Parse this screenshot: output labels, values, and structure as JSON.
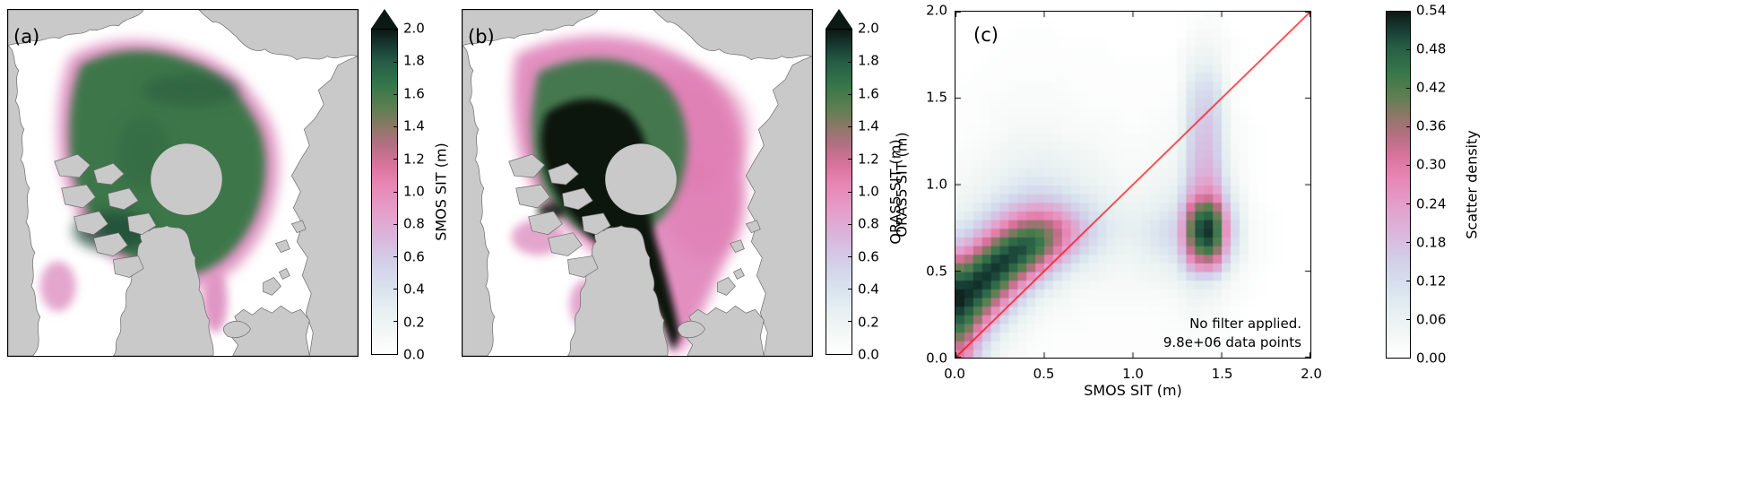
{
  "figure": {
    "background": "#ffffff",
    "land_color": "#c9c9c9",
    "pole_hole_color": "#c9c9c9",
    "frame_color": "#000000",
    "colormap_stops": [
      {
        "t": 0.0,
        "color": "#ffffff"
      },
      {
        "t": 0.06,
        "color": "#f4f8f6"
      },
      {
        "t": 0.13,
        "color": "#e7f0f1"
      },
      {
        "t": 0.2,
        "color": "#d9e3ef"
      },
      {
        "t": 0.28,
        "color": "#d3cfe9"
      },
      {
        "t": 0.36,
        "color": "#dab6dc"
      },
      {
        "t": 0.44,
        "color": "#e49fca"
      },
      {
        "t": 0.52,
        "color": "#e886b4"
      },
      {
        "t": 0.58,
        "color": "#da749d"
      },
      {
        "t": 0.64,
        "color": "#b66f84"
      },
      {
        "t": 0.7,
        "color": "#8c7867"
      },
      {
        "t": 0.76,
        "color": "#5c7f50"
      },
      {
        "t": 0.83,
        "color": "#35764a"
      },
      {
        "t": 0.9,
        "color": "#265c45"
      },
      {
        "t": 0.95,
        "color": "#173b33"
      },
      {
        "t": 1.0,
        "color": "#0c1814"
      }
    ]
  },
  "panels": {
    "a": {
      "label": "(a)",
      "colorbar": {
        "label": "SMOS SIT (m)",
        "ticks": [
          "0.0",
          "0.2",
          "0.4",
          "0.6",
          "0.8",
          "1.0",
          "1.2",
          "1.4",
          "1.6",
          "1.8",
          "2.0"
        ],
        "min": 0.0,
        "max": 2.0,
        "over_arrow": true
      }
    },
    "b": {
      "label": "(b)",
      "colorbar": {
        "label": "ORAS5 SIT (m)",
        "ticks": [
          "0.0",
          "0.2",
          "0.4",
          "0.6",
          "0.8",
          "1.0",
          "1.2",
          "1.4",
          "1.6",
          "1.8",
          "2.0"
        ],
        "min": 0.0,
        "max": 2.0,
        "over_arrow": true
      }
    },
    "c": {
      "label": "(c)",
      "xlabel": "SMOS SIT (m)",
      "ylabel": "ORAS5 SIT (m)",
      "x_ticks": [
        "0.0",
        "0.5",
        "1.0",
        "1.5",
        "2.0"
      ],
      "y_ticks": [
        "0.0",
        "0.5",
        "1.0",
        "1.5",
        "2.0"
      ],
      "identity_line_color": "#ff0000",
      "annotation": {
        "line1": "No filter applied.",
        "line2": "9.8e+06 data points"
      },
      "colorbar": {
        "label": "Scatter density",
        "ticks": [
          "0.00",
          "0.06",
          "0.12",
          "0.18",
          "0.24",
          "0.30",
          "0.36",
          "0.42",
          "0.48",
          "0.54"
        ],
        "min": 0.0,
        "max": 0.54,
        "over_arrow": false
      }
    }
  },
  "chart_data": [
    {
      "panel": "a",
      "type": "heatmap",
      "subtype": "polar-stereographic-map",
      "colorbar_label": "SMOS SIT (m)",
      "value_range": [
        0.0,
        2.0
      ],
      "colorbar_ticks": [
        0.0,
        0.2,
        0.4,
        0.6,
        0.8,
        1.0,
        1.2,
        1.4,
        1.6,
        1.8,
        2.0
      ],
      "over_arrow": true,
      "summary": "Arctic map of SMOS sea-ice thickness: central pack mostly 1.0-1.5 m (green), thin 0.4-0.8 m ice (pink) along the margins, open water white, circular gray observation gap at the pole, land in gray."
    },
    {
      "panel": "b",
      "type": "heatmap",
      "subtype": "polar-stereographic-map",
      "colorbar_label": "ORAS5 SIT (m)",
      "value_range": [
        0.0,
        2.0
      ],
      "colorbar_ticks": [
        0.0,
        0.2,
        0.4,
        0.6,
        0.8,
        1.0,
        1.2,
        1.4,
        1.6,
        1.8,
        2.0
      ],
      "over_arrow": true,
      "summary": "Arctic map of ORAS5 sea-ice thickness: very thick ice >2 m (black) north of Greenland and the Canadian Archipelago extending down the east Greenland coast, 0.5-0.9 m (pink) over the Siberian side, green transition zone in between, circular gray gap at the pole, land in gray."
    },
    {
      "panel": "c",
      "type": "heatmap",
      "xlabel": "SMOS SIT (m)",
      "ylabel": "ORAS5 SIT (m)",
      "xlim": [
        0.0,
        2.0
      ],
      "ylim": [
        0.0,
        2.0
      ],
      "zlim": [
        0.0,
        0.54
      ],
      "colorbar_label": "Scatter density",
      "x_bin_width": 0.1,
      "y_bin_width": 0.1,
      "row_order": "first row = ORAS5 bin 0.0-0.1 m; values left-to-right = SMOS 0.0-2.0 m",
      "identity_line": true,
      "annotation": [
        "No filter applied.",
        "9.8e+06 data points"
      ],
      "values": [
        [
          0.3,
          0.12,
          0.04,
          0.02,
          0.01,
          0.01,
          0.01,
          0.01,
          0.01,
          0.01,
          0.01,
          0.01,
          0.01,
          0.01,
          0.01,
          0.0,
          0.0,
          0.0,
          0.0,
          0.0
        ],
        [
          0.42,
          0.22,
          0.08,
          0.04,
          0.02,
          0.01,
          0.01,
          0.01,
          0.01,
          0.01,
          0.01,
          0.01,
          0.01,
          0.02,
          0.01,
          0.01,
          0.0,
          0.0,
          0.0,
          0.0
        ],
        [
          0.5,
          0.36,
          0.18,
          0.08,
          0.04,
          0.02,
          0.02,
          0.01,
          0.01,
          0.01,
          0.01,
          0.01,
          0.02,
          0.03,
          0.02,
          0.01,
          0.0,
          0.0,
          0.0,
          0.0
        ],
        [
          0.54,
          0.48,
          0.34,
          0.17,
          0.08,
          0.04,
          0.03,
          0.02,
          0.02,
          0.02,
          0.02,
          0.02,
          0.03,
          0.05,
          0.04,
          0.02,
          0.01,
          0.0,
          0.0,
          0.0
        ],
        [
          0.5,
          0.54,
          0.48,
          0.33,
          0.19,
          0.1,
          0.05,
          0.04,
          0.03,
          0.03,
          0.03,
          0.04,
          0.05,
          0.1,
          0.09,
          0.03,
          0.01,
          0.0,
          0.0,
          0.0
        ],
        [
          0.36,
          0.48,
          0.54,
          0.49,
          0.37,
          0.22,
          0.12,
          0.07,
          0.05,
          0.04,
          0.05,
          0.06,
          0.09,
          0.28,
          0.32,
          0.08,
          0.02,
          0.01,
          0.0,
          0.0
        ],
        [
          0.2,
          0.32,
          0.45,
          0.52,
          0.49,
          0.36,
          0.22,
          0.13,
          0.08,
          0.06,
          0.07,
          0.1,
          0.13,
          0.44,
          0.5,
          0.14,
          0.03,
          0.01,
          0.0,
          0.0
        ],
        [
          0.11,
          0.18,
          0.28,
          0.38,
          0.42,
          0.37,
          0.26,
          0.16,
          0.1,
          0.07,
          0.08,
          0.11,
          0.15,
          0.5,
          0.54,
          0.17,
          0.03,
          0.01,
          0.0,
          0.0
        ],
        [
          0.06,
          0.1,
          0.16,
          0.22,
          0.26,
          0.24,
          0.18,
          0.12,
          0.08,
          0.06,
          0.06,
          0.08,
          0.11,
          0.42,
          0.47,
          0.13,
          0.02,
          0.01,
          0.0,
          0.0
        ],
        [
          0.04,
          0.06,
          0.09,
          0.12,
          0.14,
          0.13,
          0.1,
          0.08,
          0.06,
          0.04,
          0.04,
          0.05,
          0.08,
          0.26,
          0.29,
          0.08,
          0.02,
          0.0,
          0.0,
          0.0
        ],
        [
          0.03,
          0.04,
          0.06,
          0.08,
          0.09,
          0.08,
          0.07,
          0.05,
          0.04,
          0.03,
          0.03,
          0.04,
          0.05,
          0.2,
          0.22,
          0.05,
          0.01,
          0.0,
          0.0,
          0.0
        ],
        [
          0.02,
          0.03,
          0.04,
          0.05,
          0.06,
          0.06,
          0.05,
          0.04,
          0.03,
          0.02,
          0.02,
          0.03,
          0.04,
          0.18,
          0.19,
          0.04,
          0.01,
          0.0,
          0.0,
          0.0
        ],
        [
          0.01,
          0.02,
          0.03,
          0.04,
          0.04,
          0.04,
          0.03,
          0.03,
          0.02,
          0.02,
          0.02,
          0.02,
          0.03,
          0.17,
          0.18,
          0.03,
          0.01,
          0.0,
          0.0,
          0.0
        ],
        [
          0.01,
          0.01,
          0.02,
          0.03,
          0.03,
          0.03,
          0.02,
          0.02,
          0.02,
          0.01,
          0.01,
          0.02,
          0.02,
          0.16,
          0.17,
          0.03,
          0.01,
          0.0,
          0.0,
          0.0
        ],
        [
          0.01,
          0.01,
          0.02,
          0.02,
          0.02,
          0.02,
          0.02,
          0.01,
          0.01,
          0.01,
          0.01,
          0.01,
          0.02,
          0.14,
          0.15,
          0.02,
          0.0,
          0.0,
          0.0,
          0.0
        ],
        [
          0.01,
          0.01,
          0.01,
          0.02,
          0.02,
          0.02,
          0.01,
          0.01,
          0.01,
          0.01,
          0.01,
          0.01,
          0.01,
          0.12,
          0.13,
          0.02,
          0.0,
          0.0,
          0.0,
          0.0
        ],
        [
          0.0,
          0.01,
          0.01,
          0.01,
          0.01,
          0.01,
          0.01,
          0.01,
          0.01,
          0.01,
          0.01,
          0.01,
          0.01,
          0.08,
          0.09,
          0.01,
          0.0,
          0.0,
          0.0,
          0.0
        ],
        [
          0.0,
          0.0,
          0.01,
          0.01,
          0.01,
          0.01,
          0.01,
          0.01,
          0.01,
          0.0,
          0.0,
          0.0,
          0.01,
          0.05,
          0.05,
          0.01,
          0.0,
          0.0,
          0.0,
          0.0
        ],
        [
          0.0,
          0.0,
          0.0,
          0.01,
          0.01,
          0.01,
          0.0,
          0.0,
          0.0,
          0.0,
          0.0,
          0.0,
          0.0,
          0.03,
          0.03,
          0.01,
          0.0,
          0.0,
          0.0,
          0.0
        ],
        [
          0.0,
          0.0,
          0.0,
          0.0,
          0.0,
          0.0,
          0.0,
          0.0,
          0.0,
          0.0,
          0.0,
          0.0,
          0.0,
          0.01,
          0.02,
          0.0,
          0.0,
          0.0,
          0.0,
          0.0
        ]
      ]
    }
  ]
}
